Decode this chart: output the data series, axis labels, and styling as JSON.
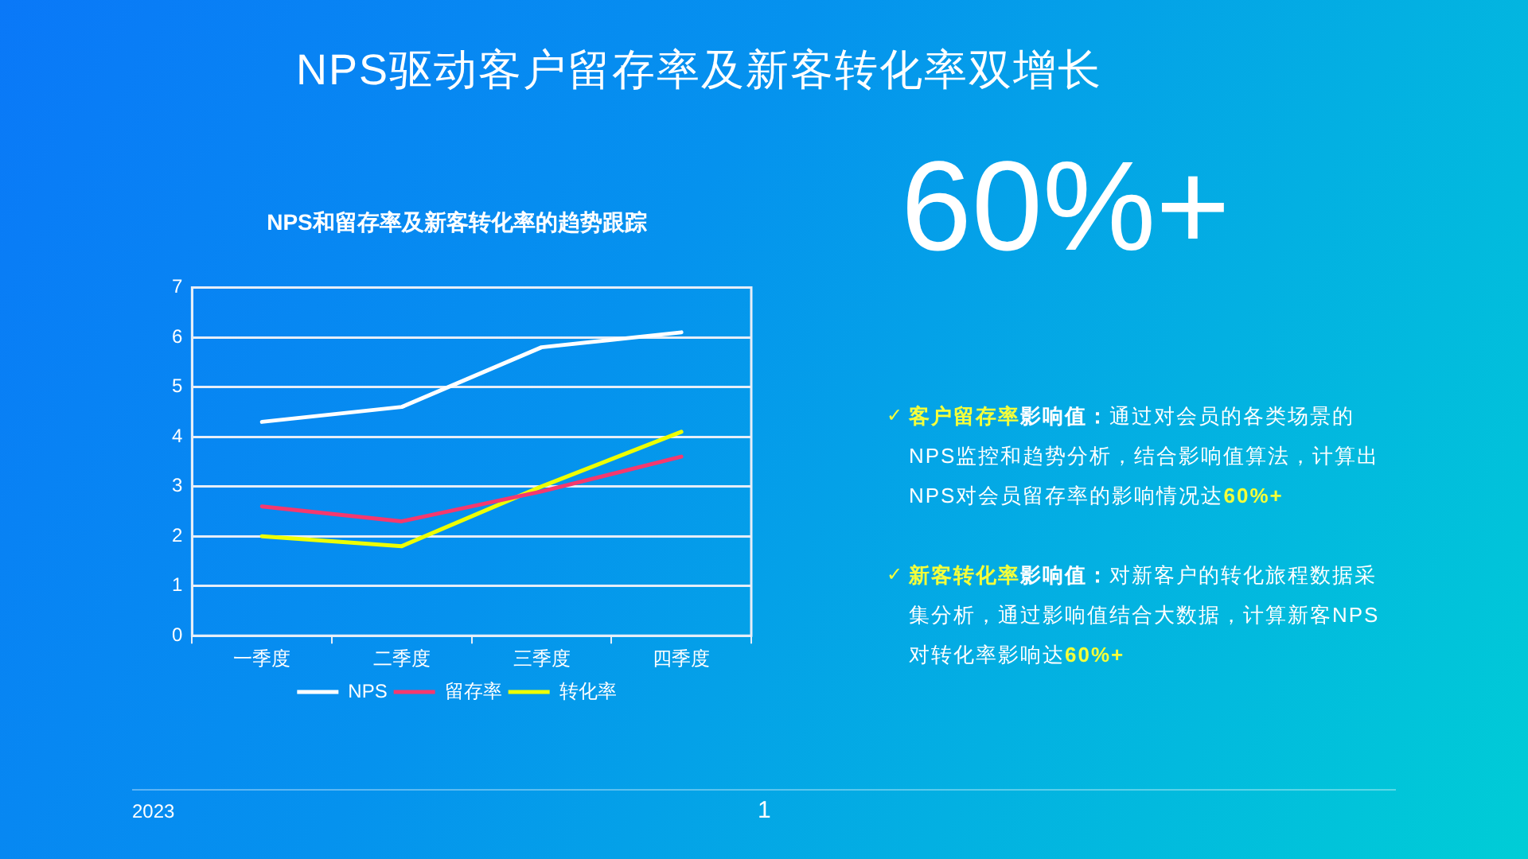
{
  "chart_data": {
    "type": "line",
    "title": "NPS和留存率及新客转化率的趋势跟踪",
    "categories": [
      "一季度",
      "二季度",
      "三季度",
      "四季度"
    ],
    "series": [
      {
        "name": "NPS",
        "color": "#ffffff",
        "values": [
          4.3,
          4.6,
          5.8,
          6.1
        ]
      },
      {
        "name": "留存率",
        "color": "#f5386e",
        "values": [
          2.6,
          2.3,
          2.9,
          3.6
        ]
      },
      {
        "name": "转化率",
        "color": "#eeff00",
        "values": [
          2.0,
          1.8,
          3.0,
          4.1
        ]
      }
    ],
    "ylim": [
      0,
      7
    ],
    "yticks": [
      0,
      1,
      2,
      3,
      4,
      5,
      6,
      7
    ],
    "grid": "y",
    "legend": "bottom",
    "marker": "none",
    "line_style": "solid",
    "annotations": [
      "NPS驱动客户留存率及新客转化率双增长",
      "60%+",
      "✓",
      "客户留存率",
      "影响值：",
      "通过对会员的各类场景的",
      "NPS监控和趋势分析，结合影响值算法，计算出",
      "NPS对会员留存率的影响情况达",
      "60%+",
      "✓",
      "新客转化率",
      "影响值：",
      "对新客户的转化旅程数据采",
      "集分析，通过影响值结合大数据，计算新客NPS",
      "对转化率影响达",
      "60%+",
      "2023",
      "1"
    ]
  }
}
